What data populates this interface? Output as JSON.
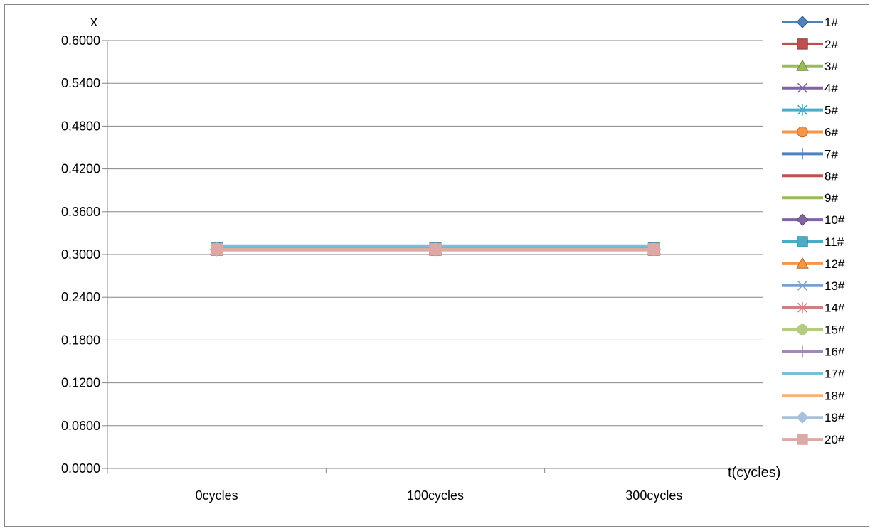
{
  "chart_data": {
    "type": "line",
    "title": "",
    "xlabel": "t(cycles)",
    "ylabel": "x",
    "categories": [
      "0cycles",
      "100cycles",
      "300cycles"
    ],
    "ylim": [
      0,
      0.6
    ],
    "yticks": [
      "0.0000",
      "0.0600",
      "0.1200",
      "0.1800",
      "0.2400",
      "0.3000",
      "0.3600",
      "0.4200",
      "0.4800",
      "0.5400",
      "0.6000"
    ],
    "grid": "horizontal",
    "legend": "right",
    "series": [
      {
        "name": "1#",
        "values": [
          0.3072,
          0.3072,
          0.3072
        ],
        "color": "#4F81BD",
        "dark": "#385D8A",
        "marker": "diamond"
      },
      {
        "name": "2#",
        "values": [
          0.3068,
          0.3068,
          0.3068
        ],
        "color": "#C0504D",
        "dark": "#8C3836",
        "marker": "square"
      },
      {
        "name": "3#",
        "values": [
          0.3075,
          0.3075,
          0.3075
        ],
        "color": "#9BBB59",
        "dark": "#71893F",
        "marker": "triangle"
      },
      {
        "name": "4#",
        "values": [
          0.3078,
          0.3078,
          0.3078
        ],
        "color": "#8064A2",
        "dark": "#5C4776",
        "marker": "x"
      },
      {
        "name": "5#",
        "values": [
          0.308,
          0.308,
          0.308
        ],
        "color": "#4BACC6",
        "dark": "#357D91",
        "marker": "star"
      },
      {
        "name": "6#",
        "values": [
          0.307,
          0.307,
          0.307
        ],
        "color": "#F79646",
        "dark": "#B66D31",
        "marker": "circle"
      },
      {
        "name": "7#",
        "values": [
          0.3074,
          0.3074,
          0.3074
        ],
        "color": "#4F81BD",
        "dark": "#385D8A",
        "marker": "plus"
      },
      {
        "name": "8#",
        "values": [
          0.3069,
          0.3069,
          0.3069
        ],
        "color": "#C0504D",
        "dark": "#8C3836",
        "marker": "dash"
      },
      {
        "name": "9#",
        "values": [
          0.3076,
          0.3076,
          0.3076
        ],
        "color": "#9BBB59",
        "dark": "#71893F",
        "marker": "none"
      },
      {
        "name": "10#",
        "values": [
          0.3073,
          0.3073,
          0.3073
        ],
        "color": "#8064A2",
        "dark": "#5C4776",
        "marker": "diamond"
      },
      {
        "name": "11#",
        "values": [
          0.3082,
          0.3082,
          0.3082
        ],
        "color": "#4BACC6",
        "dark": "#357D91",
        "marker": "square"
      },
      {
        "name": "12#",
        "values": [
          0.3071,
          0.3071,
          0.3071
        ],
        "color": "#F79646",
        "dark": "#B66D31",
        "marker": "triangle"
      },
      {
        "name": "13#",
        "values": [
          0.3077,
          0.3077,
          0.3077
        ],
        "color": "#7BA0CD",
        "dark": "#7BA0CD",
        "marker": "x"
      },
      {
        "name": "14#",
        "values": [
          0.307,
          0.307,
          0.307
        ],
        "color": "#D0807E",
        "dark": "#D0807E",
        "marker": "star"
      },
      {
        "name": "15#",
        "values": [
          0.3074,
          0.3074,
          0.3074
        ],
        "color": "#B3CC82",
        "dark": "#B3CC82",
        "marker": "circle"
      },
      {
        "name": "16#",
        "values": [
          0.3075,
          0.3075,
          0.3075
        ],
        "color": "#9F8AB9",
        "dark": "#9F8AB9",
        "marker": "plus"
      },
      {
        "name": "17#",
        "values": [
          0.3122,
          0.3122,
          0.3122
        ],
        "color": "#78C0D4",
        "dark": "#78C0D4",
        "marker": "none"
      },
      {
        "name": "18#",
        "values": [
          0.3062,
          0.3062,
          0.3062
        ],
        "color": "#F9B074",
        "dark": "#F9B074",
        "marker": "none"
      },
      {
        "name": "19#",
        "values": [
          0.3073,
          0.3073,
          0.3073
        ],
        "color": "#A7C0DE",
        "dark": "#A7C0DE",
        "marker": "diamond"
      },
      {
        "name": "20#",
        "values": [
          0.3072,
          0.3072,
          0.3072
        ],
        "color": "#DDA9A7",
        "dark": "#DDA9A7",
        "marker": "square"
      }
    ]
  }
}
